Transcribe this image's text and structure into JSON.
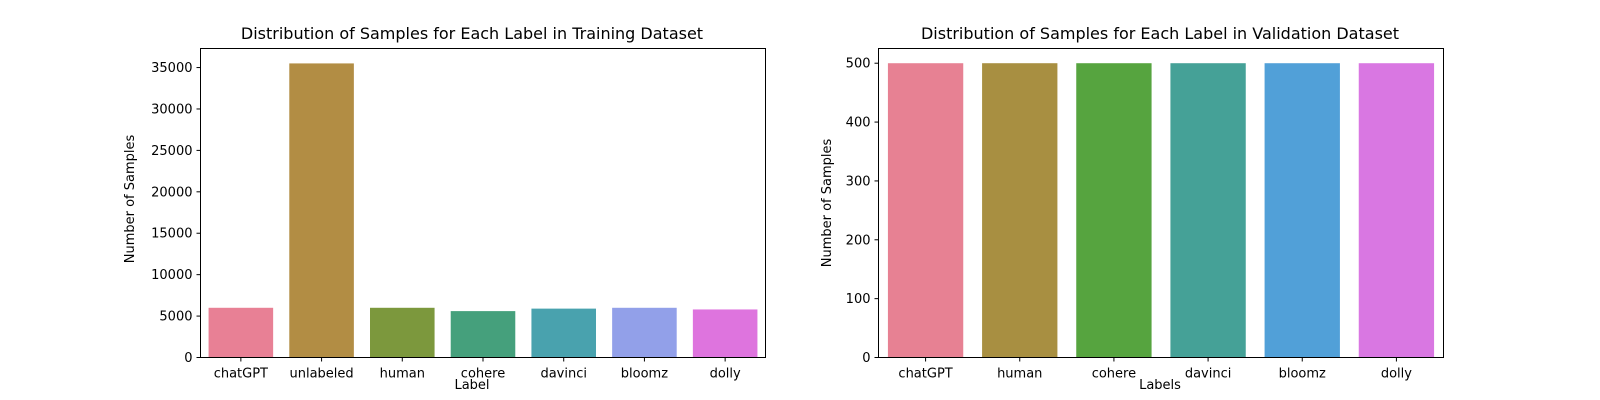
{
  "chart_data": [
    {
      "type": "bar",
      "title": "Distribution of Samples for Each Label in Training Dataset",
      "xlabel": "Label",
      "ylabel": "Number of Samples",
      "ylim": [
        0,
        37300
      ],
      "yticks": [
        0,
        5000,
        10000,
        15000,
        20000,
        25000,
        30000,
        35000
      ],
      "categories": [
        "chatGPT",
        "unlabeled",
        "human",
        "cohere",
        "davinci",
        "bloomz",
        "dolly"
      ],
      "values": [
        6000,
        35500,
        6000,
        5600,
        5900,
        6000,
        5800
      ],
      "colors": [
        "#e88095",
        "#b28d44",
        "#7c983d",
        "#45a07c",
        "#49a2ae",
        "#92a0e9",
        "#de74de"
      ],
      "grid": false,
      "legend": "none"
    },
    {
      "type": "bar",
      "title": "Distribution of Samples for Each Label in Validation Dataset",
      "xlabel": "Labels",
      "ylabel": "Number of Samples",
      "ylim": [
        0,
        525
      ],
      "yticks": [
        0,
        100,
        200,
        300,
        400,
        500
      ],
      "categories": [
        "chatGPT",
        "human",
        "cohere",
        "davinci",
        "bloomz",
        "dolly"
      ],
      "values": [
        500,
        500,
        500,
        500,
        500,
        500
      ],
      "colors": [
        "#e78193",
        "#a88f41",
        "#56a43f",
        "#45a197",
        "#51a0d8",
        "#d977e2"
      ],
      "grid": false,
      "legend": "none"
    }
  ]
}
